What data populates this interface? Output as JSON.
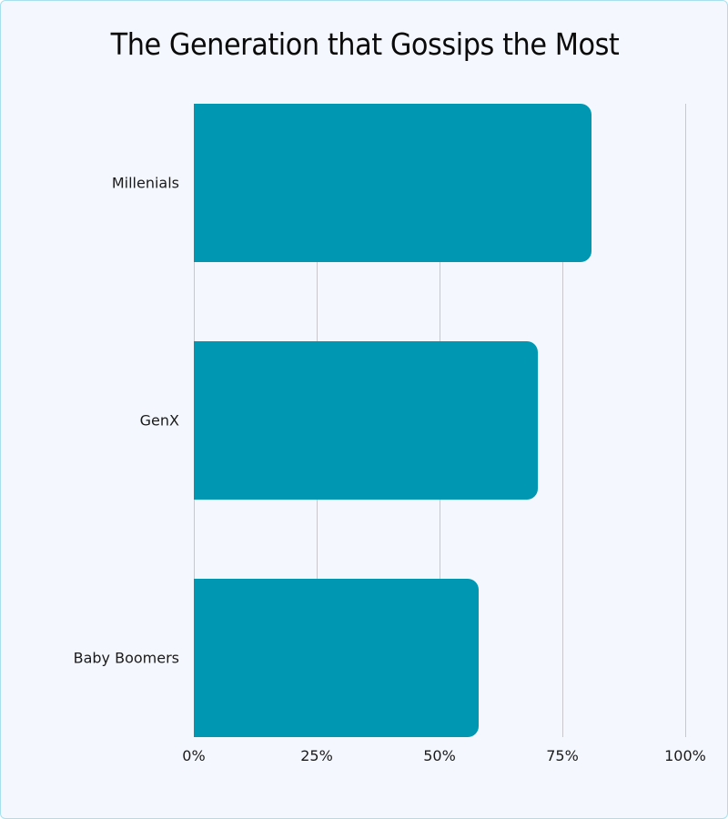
{
  "chart_data": {
    "type": "bar",
    "orientation": "horizontal",
    "title": "The Generation that Gossips the Most",
    "categories": [
      "Millenials",
      "GenX",
      "Baby Boomers"
    ],
    "values": [
      81,
      70,
      58
    ],
    "unit": "%",
    "xlabel": "",
    "ylabel": "",
    "xlim": [
      0,
      100
    ],
    "x_ticks": [
      "0%",
      "25%",
      "50%",
      "75%",
      "100%"
    ],
    "grid": "vertical",
    "legend": "none",
    "bar_color": "#0097b2"
  },
  "colors": {
    "background": "#f4f8fe",
    "border": "#a8e0ee",
    "bar": "#0097b2",
    "grid": "#c8c8cc"
  }
}
